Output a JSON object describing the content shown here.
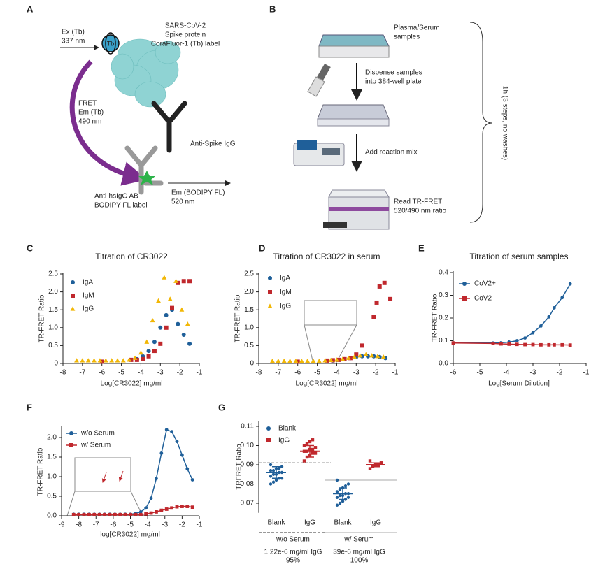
{
  "figure_a": {
    "panel": "A",
    "ex": "Ex (Tb)",
    "ex_nm": "337 nm",
    "spike_1": "SARS-CoV-2",
    "spike_2": "Spike protein",
    "spike_3": "CoraFluor-1 (Tb) label",
    "tb": "Tb",
    "fret": "FRET",
    "em_tb": "Em (Tb)",
    "em_tb_nm": "490 nm",
    "anti_spike": "Anti-Spike IgG",
    "anti_hs_1": "Anti-hsIgG AB",
    "anti_hs_2": "BODIPY FL label",
    "em_bodipy": "Em (BODIPY FL)",
    "em_bodipy_nm": "520 nm"
  },
  "figure_b": {
    "panel": "B",
    "step1_1": "Plasma/Serum",
    "step1_2": "samples",
    "step2_1": "Dispense samples",
    "step2_2": "into 384-well plate",
    "step3": "Add reaction mix",
    "step4_1": "Read TR-FRET",
    "step4_2": "520/490 nm ratio",
    "duration": "1h (3 steps, no washes)"
  },
  "chart_data": [
    {
      "panel": "C",
      "type": "scatter",
      "title": "Titration of CR3022",
      "xlabel": "Log[CR3022] mg/ml",
      "ylabel": "TR-FRET Ratio",
      "xlim": [
        -8,
        -1
      ],
      "ylim": [
        0,
        2.5
      ],
      "xticks": [
        -8,
        -7,
        -6,
        -5,
        -4,
        -3,
        -2,
        -1
      ],
      "yticks": [
        0,
        0.5,
        {
          "value": 1,
          "label": "1.0"
        },
        1.5,
        {
          "value": 2,
          "label": "2.0"
        },
        2.5
      ],
      "series": [
        {
          "name": "IgA",
          "color": "#1f5f99",
          "marker": "circle",
          "x": [
            -6,
            -4.5,
            -4.2,
            -3.9,
            -3.6,
            -3.3,
            -3.0,
            -2.7,
            -2.4,
            -2.1,
            -1.8,
            -1.5
          ],
          "values": [
            0.05,
            0.1,
            0.12,
            0.2,
            0.35,
            0.6,
            1.0,
            1.35,
            1.5,
            1.1,
            0.8,
            0.55
          ]
        },
        {
          "name": "IgM",
          "color": "#c0282d",
          "marker": "square",
          "x": [
            -6,
            -4.5,
            -4.2,
            -3.9,
            -3.6,
            -3.3,
            -3.0,
            -2.7,
            -2.4,
            -2.1,
            -1.8,
            -1.5
          ],
          "values": [
            0.05,
            0.1,
            0.1,
            0.12,
            0.2,
            0.35,
            0.55,
            1.0,
            1.55,
            2.25,
            2.3,
            2.3
          ]
        },
        {
          "name": "IgG",
          "color": "#f2b705",
          "marker": "triangle",
          "x": [
            -7.3,
            -7.0,
            -6.7,
            -6.4,
            -6.1,
            -5.8,
            -5.5,
            -5.2,
            -4.9,
            -4.6,
            -4.3,
            -4.0,
            -3.7,
            -3.4,
            -3.1,
            -2.8,
            -2.5,
            -2.2,
            -1.9,
            -1.6
          ],
          "values": [
            0.08,
            0.08,
            0.08,
            0.08,
            0.08,
            0.08,
            0.08,
            0.08,
            0.08,
            0.1,
            0.15,
            0.3,
            0.6,
            1.2,
            1.75,
            2.4,
            1.8,
            2.3,
            1.5,
            1.1
          ]
        }
      ]
    },
    {
      "panel": "D",
      "type": "scatter",
      "title": "Titration of CR3022 in serum",
      "xlabel": "Log[CR3022] mg/ml",
      "ylabel": "TR-FRET Ratio",
      "xlim": [
        -8,
        -1
      ],
      "ylim": [
        0,
        2.5
      ],
      "xticks": [
        -8,
        -7,
        -6,
        -5,
        -4,
        -3,
        -2,
        -1
      ],
      "yticks": [
        0,
        0.5,
        {
          "value": 1,
          "label": "1.0"
        },
        1.5,
        {
          "value": 2,
          "label": "2.0"
        },
        2.5
      ],
      "series": [
        {
          "name": "IgA",
          "color": "#1f5f99",
          "marker": "circle",
          "x": [
            -6,
            -4.5,
            -4.2,
            -3.9,
            -3.6,
            -3.3,
            -3.0,
            -2.7,
            -2.4,
            -2.1,
            -1.8,
            -1.5
          ],
          "values": [
            0.05,
            0.08,
            0.08,
            0.1,
            0.12,
            0.15,
            0.18,
            0.2,
            0.2,
            0.2,
            0.18,
            0.15
          ]
        },
        {
          "name": "IgM",
          "color": "#c0282d",
          "marker": "square",
          "x": [
            -6,
            -4.5,
            -4.2,
            -3.9,
            -3.6,
            -3.3,
            -3.0,
            -2.7,
            -2.1,
            -1.95,
            -1.8,
            -1.55,
            -1.25
          ],
          "values": [
            0.05,
            0.08,
            0.09,
            0.1,
            0.12,
            0.15,
            0.25,
            0.5,
            1.3,
            1.7,
            2.15,
            2.25,
            1.8
          ]
        },
        {
          "name": "IgG",
          "color": "#f2b705",
          "marker": "triangle",
          "x": [
            -7.3,
            -7.0,
            -6.7,
            -6.4,
            -6.1,
            -5.8,
            -5.5,
            -5.2,
            -4.9,
            -4.6,
            -4.3,
            -4.0,
            -3.7,
            -3.4,
            -3.1,
            -2.8,
            -2.5,
            -2.2,
            -1.9,
            -1.6
          ],
          "values": [
            0.07,
            0.07,
            0.07,
            0.07,
            0.07,
            0.07,
            0.07,
            0.07,
            0.07,
            0.08,
            0.09,
            0.1,
            0.12,
            0.15,
            0.18,
            0.22,
            0.25,
            0.22,
            0.2,
            0.18
          ]
        }
      ]
    },
    {
      "panel": "E",
      "type": "line",
      "title": "Titration of serum samples",
      "xlabel": "Log[Serum Dilution]",
      "ylabel": "TR-FRET Ratio",
      "xlim": [
        -6,
        -1
      ],
      "ylim": [
        0,
        0.4
      ],
      "xticks": [
        -6,
        -5,
        -4,
        -3,
        -2,
        -1
      ],
      "yticks": [
        {
          "value": 0,
          "label": "0.0"
        },
        0.1,
        0.2,
        0.3,
        0.4
      ],
      "series": [
        {
          "name": "CoV2+",
          "color": "#1f5f99",
          "marker": "circle",
          "x": [
            -6,
            -4.5,
            -4.2,
            -3.9,
            -3.6,
            -3.3,
            -3.0,
            -2.7,
            -2.4,
            -2.2,
            -1.9,
            -1.6
          ],
          "values": [
            0.09,
            0.09,
            0.091,
            0.094,
            0.1,
            0.112,
            0.135,
            0.165,
            0.205,
            0.245,
            0.29,
            0.35
          ]
        },
        {
          "name": "CoV2-",
          "color": "#c0282d",
          "marker": "square",
          "x": [
            -6,
            -4.5,
            -4.2,
            -3.9,
            -3.6,
            -3.3,
            -3.0,
            -2.7,
            -2.4,
            -2.2,
            -1.9,
            -1.6
          ],
          "values": [
            0.09,
            0.088,
            0.086,
            0.085,
            0.084,
            0.083,
            0.083,
            0.082,
            0.082,
            0.082,
            0.082,
            0.081
          ]
        }
      ]
    },
    {
      "panel": "F",
      "type": "line",
      "xlabel": "log[CR3022] mg/ml",
      "ylabel": "TR-FRET Ratio",
      "xlim": [
        -9,
        -1
      ],
      "ylim": [
        0,
        2.25
      ],
      "xticks": [
        -9,
        -8,
        -7,
        -6,
        -5,
        -4,
        -3,
        -2,
        -1
      ],
      "yticks": [
        {
          "value": 0,
          "label": "0.0"
        },
        0.5,
        {
          "value": 1,
          "label": "1.0"
        },
        1.5,
        {
          "value": 2,
          "label": "2.0"
        }
      ],
      "series": [
        {
          "name": "w/o Serum",
          "color": "#1f5f99",
          "marker": "circle",
          "x": [
            -8.3,
            -8.0,
            -7.7,
            -7.4,
            -7.1,
            -6.8,
            -6.5,
            -6.2,
            -5.9,
            -5.6,
            -5.3,
            -5.0,
            -4.7,
            -4.4,
            -4.1,
            -3.8,
            -3.5,
            -3.2,
            -2.9,
            -2.6,
            -2.3,
            -2.0,
            -1.7,
            -1.4
          ],
          "values": [
            0.04,
            0.04,
            0.04,
            0.04,
            0.04,
            0.04,
            0.04,
            0.04,
            0.04,
            0.04,
            0.04,
            0.04,
            0.06,
            0.1,
            0.2,
            0.45,
            0.95,
            1.6,
            2.2,
            2.15,
            1.9,
            1.55,
            1.2,
            0.92
          ]
        },
        {
          "name": "w/ Serum",
          "color": "#c0282d",
          "marker": "square",
          "x": [
            -8.3,
            -8.0,
            -7.7,
            -7.4,
            -7.1,
            -6.8,
            -6.5,
            -6.2,
            -5.9,
            -5.6,
            -5.3,
            -5.0,
            -4.7,
            -4.4,
            -4.1,
            -3.8,
            -3.5,
            -3.2,
            -2.9,
            -2.6,
            -2.3,
            -2.0,
            -1.7,
            -1.4
          ],
          "values": [
            0.03,
            0.03,
            0.03,
            0.03,
            0.03,
            0.03,
            0.03,
            0.03,
            0.03,
            0.03,
            0.03,
            0.03,
            0.03,
            0.03,
            0.05,
            0.07,
            0.1,
            0.14,
            0.17,
            0.2,
            0.23,
            0.24,
            0.24,
            0.22
          ]
        }
      ]
    },
    {
      "panel": "G",
      "type": "dot",
      "ylabel": "TRFRET Ratio",
      "ylim": [
        0.065,
        0.112
      ],
      "yticks": [
        0.07,
        0.08,
        0.09,
        {
          "value": 0.1,
          "label": "0.10"
        },
        0.11
      ],
      "categories": [
        "Blank",
        "IgG",
        "Blank",
        "IgG"
      ],
      "conditions": [
        {
          "name": "w/o Serum",
          "note": "1.22e-6 mg/ml IgG",
          "percent": "95%",
          "threshold": 0.091
        },
        {
          "name": "w/ Serum",
          "note": "39e-6 mg/ml IgG",
          "percent": "100%",
          "threshold": 0.082
        }
      ],
      "series": [
        {
          "name": "Blank",
          "color": "#1f5f99",
          "marker": "circle",
          "values": [
            [
              0.08,
              0.081,
              0.082,
              0.083,
              0.083,
              0.084,
              0.085,
              0.085,
              0.086,
              0.086,
              0.087,
              0.087,
              0.088,
              0.088,
              0.089,
              0.09
            ],
            [
              0.069,
              0.07,
              0.071,
              0.072,
              0.073,
              0.073,
              0.074,
              0.074,
              0.075,
              0.075,
              0.076,
              0.077,
              0.078,
              0.079,
              0.08,
              0.082
            ]
          ],
          "means": [
            0.086,
            0.075
          ],
          "sd": [
            0.003,
            0.003
          ]
        },
        {
          "name": "IgG",
          "color": "#c0282d",
          "marker": "square",
          "values": [
            [
              0.092,
              0.094,
              0.095,
              0.096,
              0.096,
              0.097,
              0.097,
              0.098,
              0.098,
              0.099,
              0.1,
              0.101,
              0.102,
              0.103
            ],
            [
              0.088,
              0.089,
              0.09,
              0.09,
              0.091,
              0.092
            ]
          ],
          "means": [
            0.097,
            0.09
          ],
          "sd": [
            0.003,
            0.001
          ]
        }
      ]
    }
  ]
}
